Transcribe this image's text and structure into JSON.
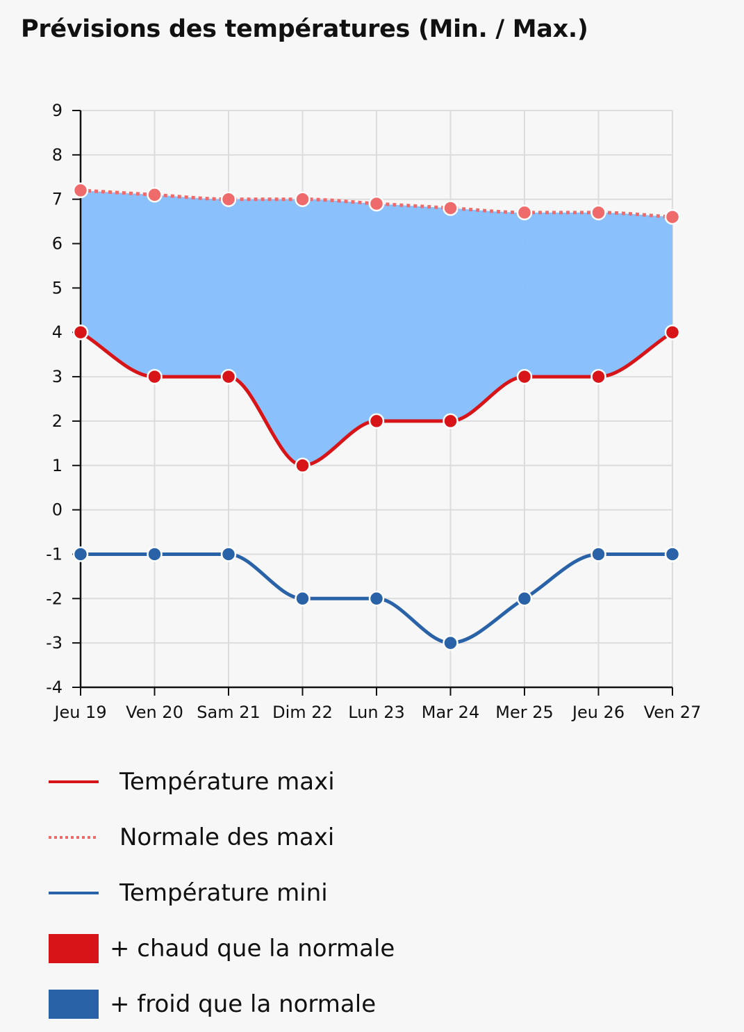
{
  "title": "Prévisions des températures (Min. / Max.)",
  "chart_data": {
    "type": "line",
    "title": "Prévisions des températures (Min. / Max.)",
    "categories": [
      "Jeu 19",
      "Ven 20",
      "Sam 21",
      "Dim 22",
      "Lun 23",
      "Mar 24",
      "Mer 25",
      "Jeu 26",
      "Ven 27"
    ],
    "ylim": [
      -4,
      9
    ],
    "yticks": [
      9,
      8,
      7,
      6,
      5,
      4,
      3,
      2,
      1,
      0,
      -1,
      -2,
      -3,
      -4
    ],
    "grid": true,
    "legend_position": "bottom",
    "series": [
      {
        "name": "Température maxi",
        "color": "#d71418",
        "style": "solid",
        "values": [
          4,
          3,
          3,
          1,
          2,
          2,
          3,
          3,
          4
        ]
      },
      {
        "name": "Normale des maxi",
        "color": "#ef6b6b",
        "style": "dotted",
        "values": [
          7.2,
          7.1,
          7.0,
          7.0,
          6.9,
          6.8,
          6.7,
          6.7,
          6.6
        ]
      },
      {
        "name": "Température mini",
        "color": "#2a62a8",
        "style": "solid",
        "values": [
          -1,
          -1,
          -1,
          -2,
          -2,
          -3,
          -2,
          -1,
          -1
        ]
      }
    ],
    "areas": [
      {
        "name": "+ chaud que la normale",
        "color": "#d71418"
      },
      {
        "name": "+ froid que la normale",
        "color": "#2a62a8",
        "fill": "#84bdfc"
      }
    ]
  }
}
